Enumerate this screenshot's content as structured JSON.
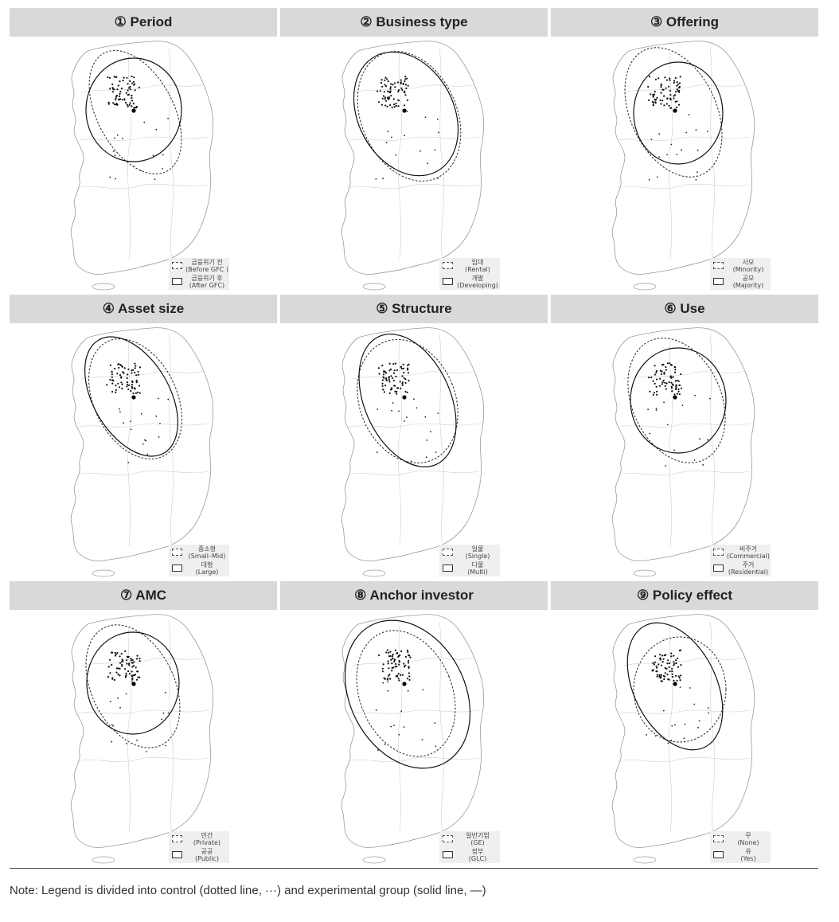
{
  "panels": [
    {
      "title": "① Period",
      "legend": {
        "control": [
          "금융위기 전",
          "(Before GFC )"
        ],
        "experimental": [
          "금융위기 후",
          "(After GFC)"
        ]
      }
    },
    {
      "title": "② Business type",
      "legend": {
        "control": [
          "임대",
          "(Rental)"
        ],
        "experimental": [
          "개발",
          "(Developing)"
        ]
      }
    },
    {
      "title": "③ Offering",
      "legend": {
        "control": [
          "사모",
          "(Minority)"
        ],
        "experimental": [
          "공모",
          "(Majority)"
        ]
      }
    },
    {
      "title": "④ Asset size",
      "legend": {
        "control": [
          "중소형",
          "(Small–Mid)"
        ],
        "experimental": [
          "대형",
          "(Large)"
        ]
      }
    },
    {
      "title": "⑤ Structure",
      "legend": {
        "control": [
          "일물",
          "(Single)"
        ],
        "experimental": [
          "다물",
          "(Multi)"
        ]
      }
    },
    {
      "title": "⑥ Use",
      "legend": {
        "control": [
          "비주거",
          "(Commercial)"
        ],
        "experimental": [
          "주거",
          "(Residential)"
        ]
      }
    },
    {
      "title": "⑦ AMC",
      "legend": {
        "control": [
          "민간",
          "(Private)"
        ],
        "experimental": [
          "공공",
          "(Public)"
        ]
      }
    },
    {
      "title": "⑧ Anchor investor",
      "legend": {
        "control": [
          "일반기업",
          "(GE)"
        ],
        "experimental": [
          "정부",
          "(GLC)"
        ]
      }
    },
    {
      "title": "⑨ Policy effect",
      "legend": {
        "control": [
          "무",
          "(None)"
        ],
        "experimental": [
          "유",
          "(Yes)"
        ]
      }
    }
  ],
  "note": "Note: Legend is divided into control (dotted line, ···) and experimental group (solid line, —)"
}
